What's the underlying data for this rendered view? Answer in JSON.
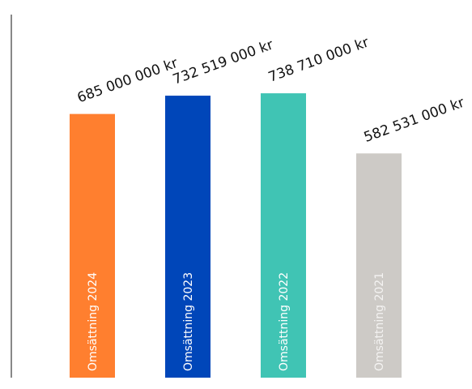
{
  "chart_data": {
    "type": "bar",
    "title": "",
    "xlabel": "",
    "ylabel": "",
    "categories": [
      "Omsättning 2024",
      "Omsättning 2023",
      "Omsättning 2022",
      "Omsättning 2021"
    ],
    "values": [
      685000000,
      732519000,
      738710000,
      582531000
    ],
    "value_labels": [
      "685 000 000 kr",
      "732 519 000 kr",
      "738 710 000 kr",
      "582 531 000 kr"
    ],
    "colors": [
      "#FF7F2F",
      "#0046B9",
      "#40C4B4",
      "#CDCAC6"
    ],
    "label_colors": [
      "#ffffff",
      "#ffffff",
      "#ffffff",
      "#f4f3f2"
    ],
    "ylim": [
      0,
      1000000000
    ],
    "grid": false,
    "legend": "none"
  }
}
